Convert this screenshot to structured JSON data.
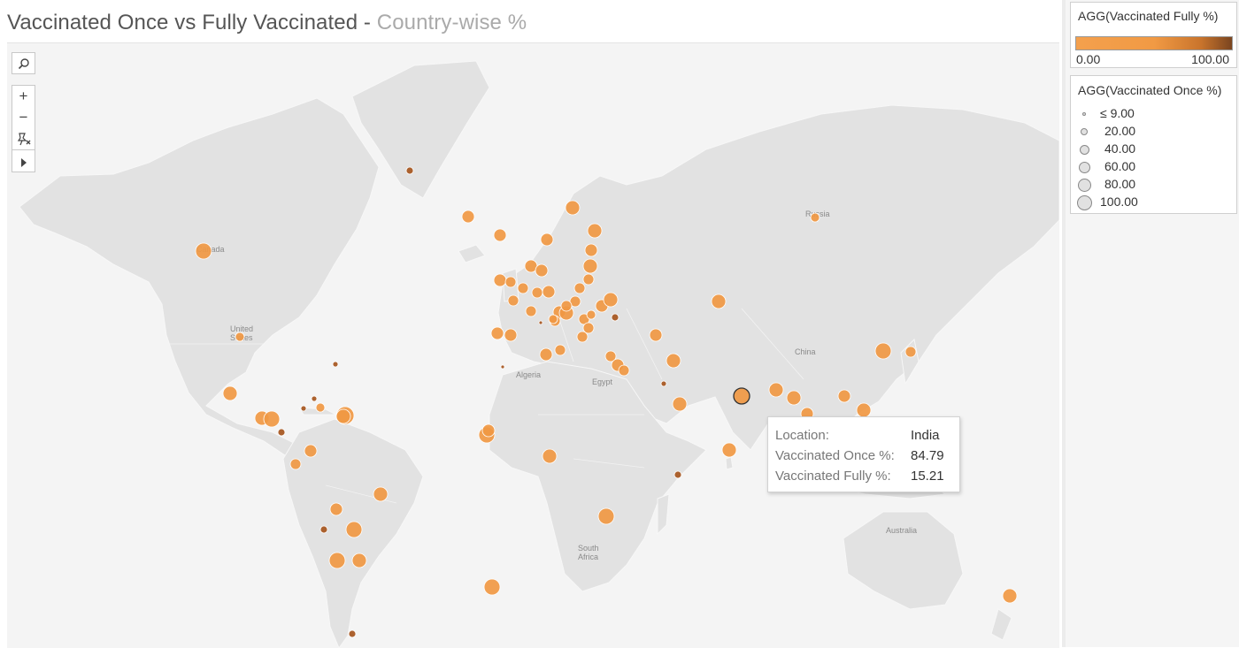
{
  "title": {
    "main": "Vaccinated Once vs Fully Vaccinated - ",
    "sub": "Country-wise %"
  },
  "map_controls": {
    "search_icon": "magnifier-icon",
    "zoom_in": "+",
    "zoom_out": "−",
    "pin_icon": "unpin-map-icon",
    "expand_icon": "play-arrow-icon"
  },
  "map_labels": {
    "canada": "Canada",
    "usa_line1": "United",
    "usa_line2": "States",
    "russia": "Russia",
    "algeria": "Algeria",
    "egypt": "Egypt",
    "china": "China",
    "south_africa_line1": "South",
    "south_africa_line2": "Africa",
    "australia": "Australia"
  },
  "color_legend": {
    "title": "AGG(Vaccinated Fully %)",
    "min": "0.00",
    "max": "100.00",
    "color_low": "#f4a04d",
    "color_high": "#7a4520"
  },
  "size_legend": {
    "title": "AGG(Vaccinated Once %)",
    "items": [
      "≤ 9.00",
      "20.00",
      "40.00",
      "60.00",
      "80.00",
      "100.00"
    ]
  },
  "tooltip": {
    "location_label": "Location:",
    "location_value": "India",
    "once_label": "Vaccinated Once %:",
    "once_value": "84.79",
    "fully_label": "Vaccinated Fully %:",
    "fully_value": "15.21"
  },
  "colors": {
    "bubble": "#f09843",
    "bubble_dark": "#a85a24",
    "land": "#e2e2e2",
    "water": "#f4f4f4"
  }
}
